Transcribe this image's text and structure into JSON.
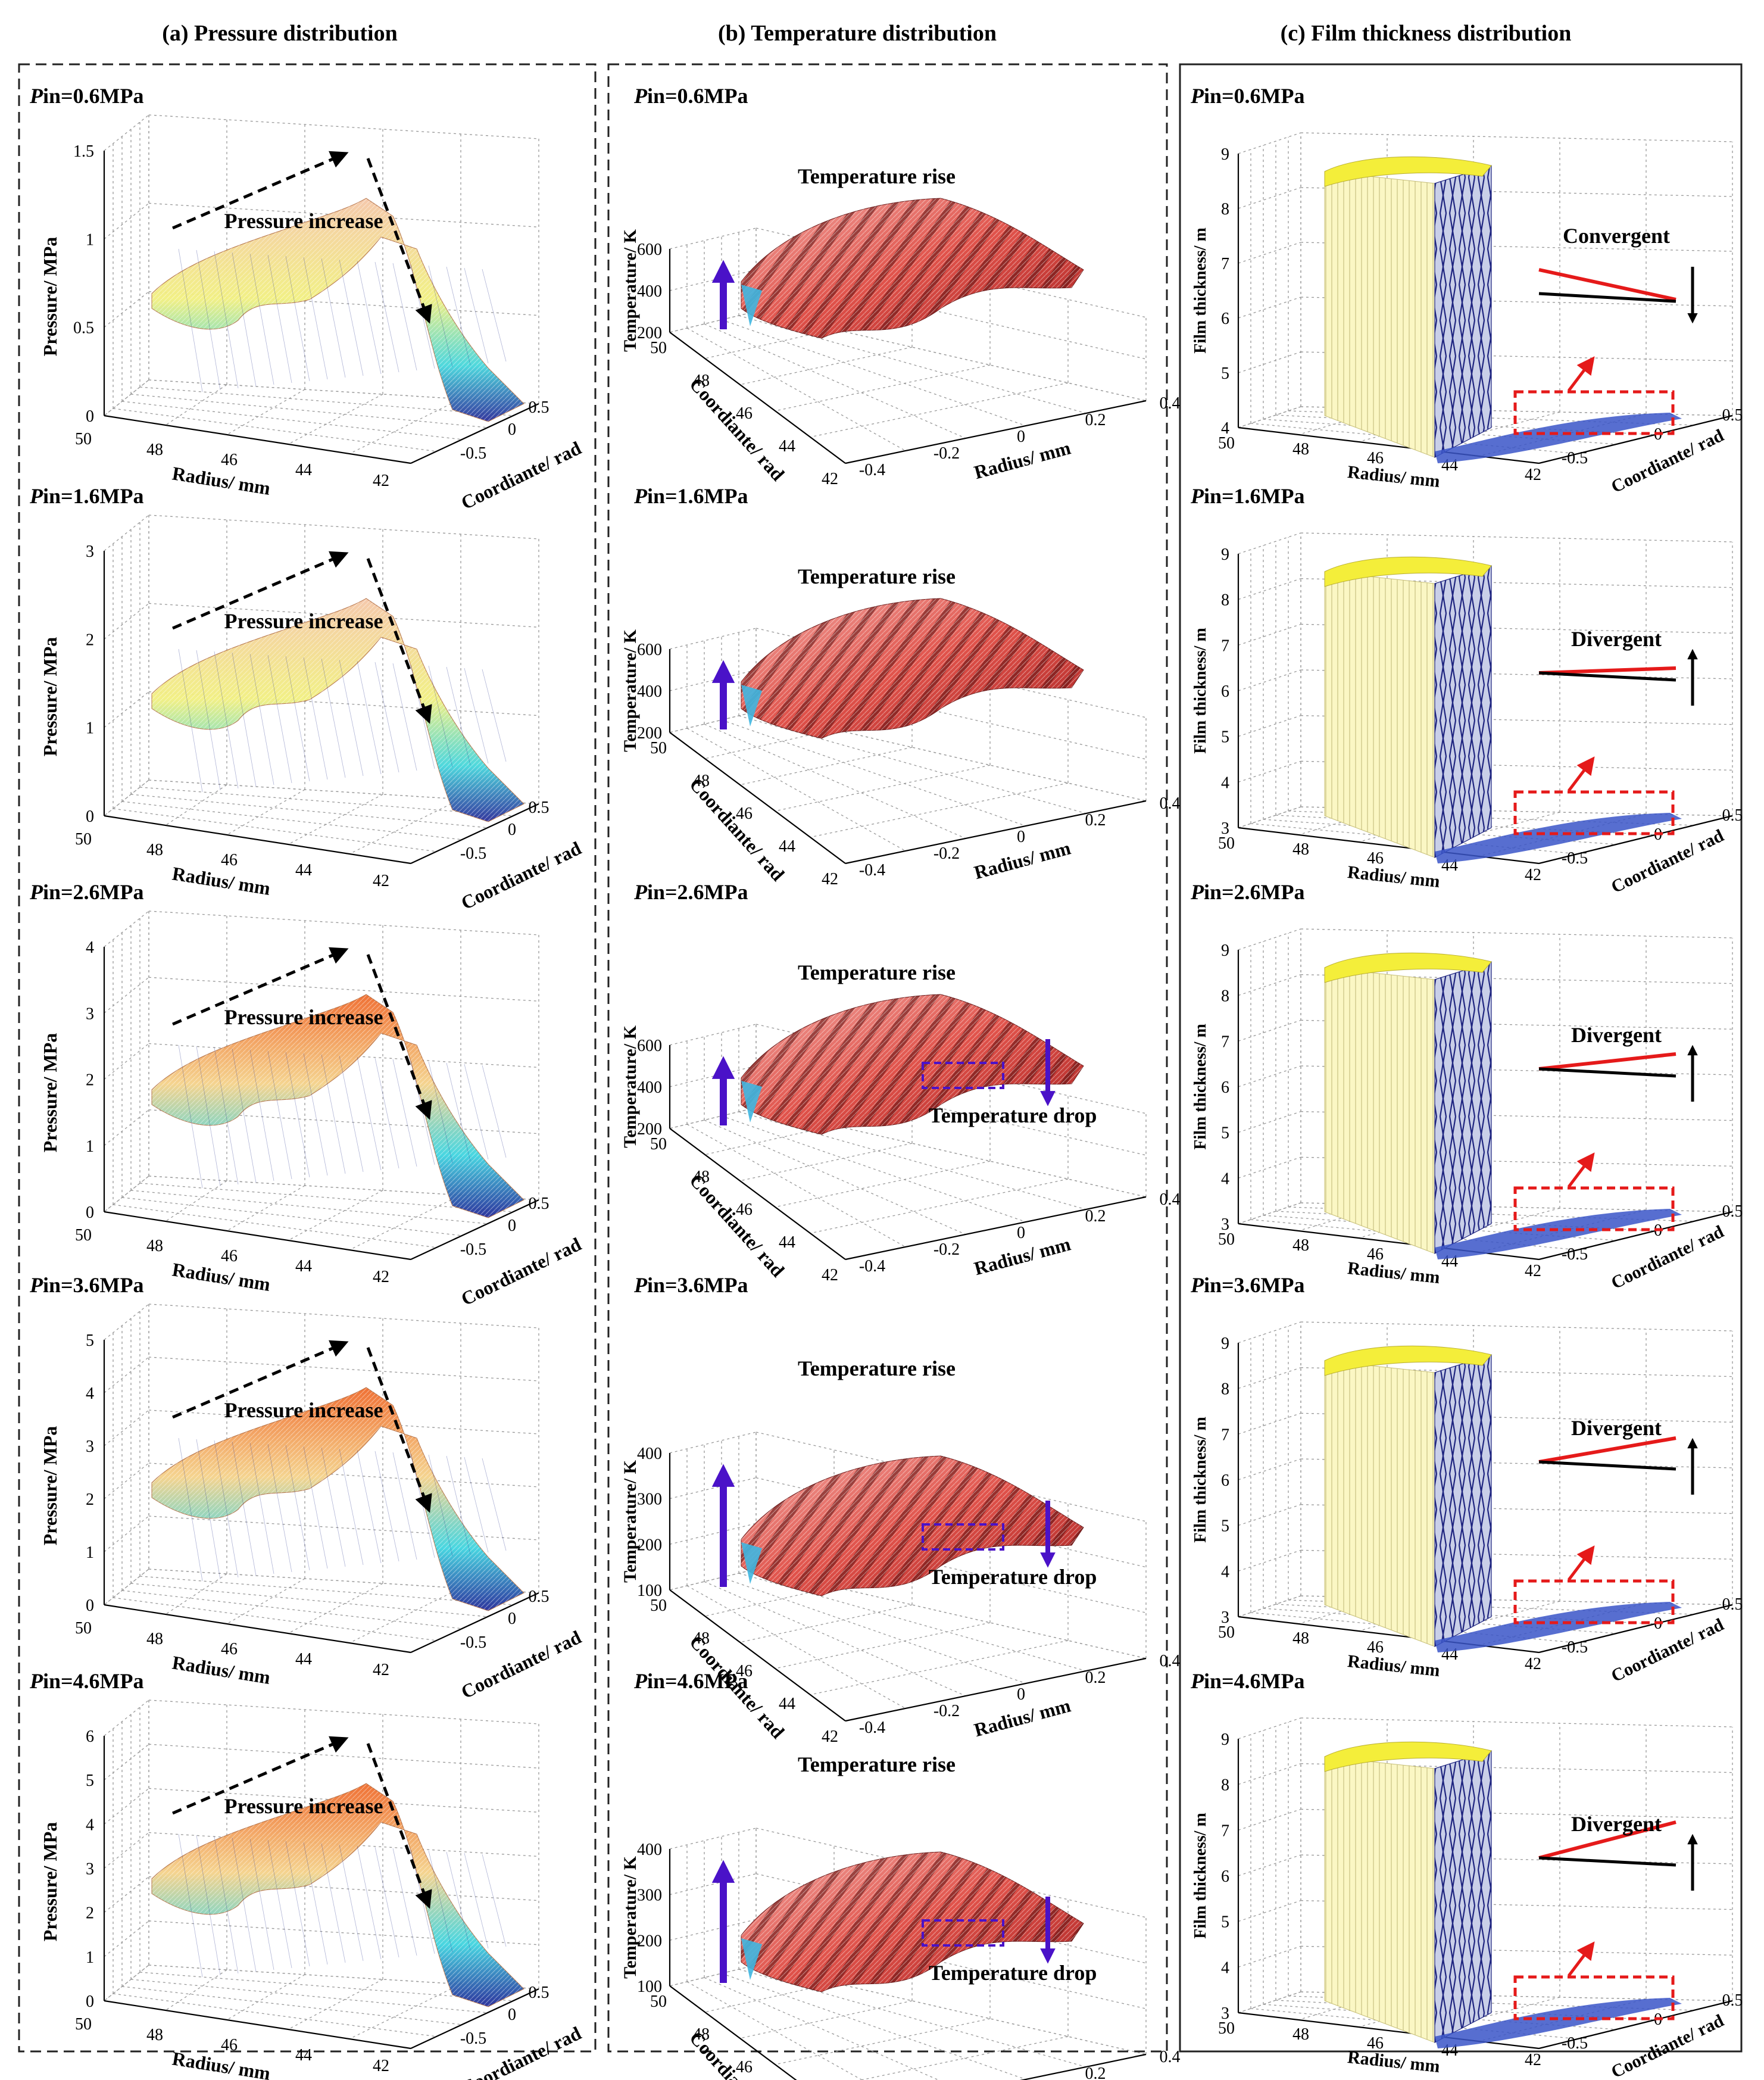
{
  "figure": {
    "columns": [
      {
        "title": "(a) Pressure distribution"
      },
      {
        "title": "(b) Temperature distribution"
      },
      {
        "title": "(c) Film thickness distribution"
      }
    ]
  },
  "chart_data": [
    {
      "type": "surface3d",
      "panel": "pressure",
      "rows": [
        {
          "pin_prefix": "P",
          "pin_value": "in=0.6MPa",
          "zticks": [
            "0",
            "0.5",
            "1",
            "1.5"
          ],
          "zmax": 1.5,
          "annotation": "Pressure increase"
        },
        {
          "pin_prefix": "P",
          "pin_value": "in=1.6MPa",
          "zticks": [
            "0",
            "1",
            "2",
            "3"
          ],
          "zmax": 3,
          "annotation": "Pressure increase"
        },
        {
          "pin_prefix": "P",
          "pin_value": "in=2.6MPa",
          "zticks": [
            "0",
            "1",
            "2",
            "3",
            "4"
          ],
          "zmax": 4,
          "annotation": "Pressure increase"
        },
        {
          "pin_prefix": "P",
          "pin_value": "in=3.6MPa",
          "zticks": [
            "0",
            "1",
            "2",
            "3",
            "4",
            "5"
          ],
          "zmax": 5,
          "annotation": "Pressure increase"
        },
        {
          "pin_prefix": "P",
          "pin_value": "in=4.6MPa",
          "zticks": [
            "0",
            "1",
            "2",
            "3",
            "4",
            "5",
            "6"
          ],
          "zmax": 6,
          "annotation": "Pressure increase"
        }
      ],
      "zlabel": "Pressure/ MPa",
      "xlabel": "Radius/ mm",
      "ylabel": "Coordiante/ rad",
      "xticks": [
        "50",
        "48",
        "46",
        "44",
        "42"
      ],
      "yticks": [
        "0.5",
        "0",
        "-0.5"
      ]
    },
    {
      "type": "surface3d",
      "panel": "temperature",
      "rows": [
        {
          "pin_prefix": "P",
          "pin_value": "in=0.6MPa",
          "zticks": [
            "200",
            "400",
            "600"
          ],
          "zlim": [
            200,
            600
          ],
          "rise": "Temperature rise",
          "drop": ""
        },
        {
          "pin_prefix": "P",
          "pin_value": "in=1.6MPa",
          "zticks": [
            "200",
            "400",
            "600"
          ],
          "zlim": [
            200,
            600
          ],
          "rise": "Temperature rise",
          "drop": ""
        },
        {
          "pin_prefix": "P",
          "pin_value": "in=2.6MPa",
          "zticks": [
            "200",
            "400",
            "600"
          ],
          "zlim": [
            200,
            600
          ],
          "rise": "Temperature rise",
          "drop": "Temperature drop"
        },
        {
          "pin_prefix": "P",
          "pin_value": "in=3.6MPa",
          "zticks": [
            "100",
            "200",
            "300",
            "400"
          ],
          "zlim": [
            100,
            400
          ],
          "rise": "Temperature rise",
          "drop": "Temperature drop"
        },
        {
          "pin_prefix": "P",
          "pin_value": "in=4.6MPa",
          "zticks": [
            "100",
            "200",
            "300",
            "400"
          ],
          "zlim": [
            100,
            400
          ],
          "rise": "Temperature rise",
          "drop": "Temperature drop"
        }
      ],
      "zlabel": "Temperature/ K",
      "xlabel": "Radius/ mm",
      "ylabel": "Coordiante/ rad",
      "yticks": [
        "50",
        "48",
        "46",
        "44",
        "42"
      ],
      "xticks": [
        "-0.4",
        "-0.2",
        "0",
        "0.2",
        "0.4"
      ]
    },
    {
      "type": "surface3d",
      "panel": "film_thickness",
      "rows": [
        {
          "pin_prefix": "P",
          "pin_value": "in=0.6MPa",
          "zticks": [
            "4",
            "5",
            "6",
            "7",
            "8",
            "9"
          ],
          "label": "Convergent",
          "direction": "down"
        },
        {
          "pin_prefix": "P",
          "pin_value": "in=1.6MPa",
          "zticks": [
            "3",
            "4",
            "5",
            "6",
            "7",
            "8",
            "9"
          ],
          "label": "Divergent",
          "direction": "up"
        },
        {
          "pin_prefix": "P",
          "pin_value": "in=2.6MPa",
          "zticks": [
            "3",
            "4",
            "5",
            "6",
            "7",
            "8",
            "9"
          ],
          "label": "Divergent",
          "direction": "up"
        },
        {
          "pin_prefix": "P",
          "pin_value": "in=3.6MPa",
          "zticks": [
            "3",
            "4",
            "5",
            "6",
            "7",
            "8",
            "9"
          ],
          "label": "Divergent",
          "direction": "up"
        },
        {
          "pin_prefix": "P",
          "pin_value": "in=4.6MPa",
          "zticks": [
            "3",
            "4",
            "5",
            "6",
            "7",
            "8",
            "9"
          ],
          "label": "Divergent",
          "direction": "up"
        }
      ],
      "zlabel": "Film thickness/ m",
      "xlabel": "Radius/ mm",
      "ylabel": "Coordiante/ rad",
      "xticks": [
        "50",
        "48",
        "46",
        "44",
        "42"
      ],
      "yticks": [
        "0.5",
        "0",
        "-0.5"
      ]
    }
  ],
  "colors": {
    "dash_frame": "#222222",
    "temp_arrow": "#4a12c8",
    "film_red": "#e51a1a",
    "film_yellow": "#f4ee3a",
    "film_navy": "#1f2580"
  }
}
